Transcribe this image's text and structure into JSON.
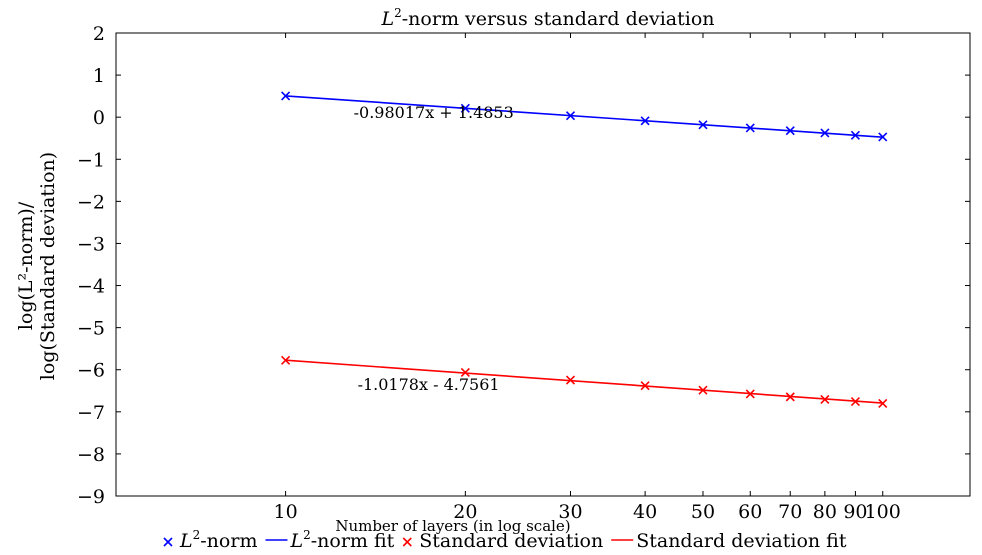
{
  "chart_data": {
    "type": "line",
    "title_math": "L",
    "title_sup": "2",
    "title_rest": "-norm versus standard deviation",
    "xlabel": "Number of layers (in log scale)",
    "ylabel_line1": "log(L²-norm)/",
    "ylabel_line2": "log(Standard deviation)",
    "xscale": "log",
    "x_ticks": [
      10,
      20,
      30,
      40,
      50,
      60,
      70,
      80,
      90,
      100
    ],
    "x_tick_labels": [
      "10",
      "20",
      "30",
      "40",
      "50",
      "60",
      "70",
      "80",
      "90",
      "100"
    ],
    "xlim": [
      5.2,
      140
    ],
    "ylim": [
      -9,
      2
    ],
    "y_ticks": [
      2,
      1,
      0,
      -1,
      -2,
      -3,
      -4,
      -5,
      -6,
      -7,
      -8,
      -9
    ],
    "y_tick_labels": [
      "2",
      "1",
      "0",
      "−1",
      "−2",
      "−3",
      "−4",
      "−5",
      "−6",
      "−7",
      "−8",
      "−9"
    ],
    "grid": false,
    "legend_position": "bottom",
    "series": [
      {
        "name": "L²-norm",
        "name_math": "L",
        "name_sup": "2",
        "name_rest": "-norm",
        "kind": "markers",
        "marker": "x",
        "color": "#0000ff",
        "x": [
          10,
          20,
          30,
          40,
          50,
          60,
          70,
          80,
          90,
          100
        ],
        "y": [
          0.505,
          0.21,
          0.035,
          -0.085,
          -0.18,
          -0.255,
          -0.32,
          -0.375,
          -0.43,
          -0.47
        ]
      },
      {
        "name": "L²-norm fit",
        "name_math": "L",
        "name_sup": "2",
        "name_rest": "-norm fit",
        "kind": "line",
        "color": "#0000ff",
        "slope": -0.98017,
        "intercept": 1.4853,
        "x": [
          10,
          100
        ],
        "annotation": "-0.98017x + 1.4853",
        "annotation_at": [
          13,
          -0.02
        ]
      },
      {
        "name": "Standard deviation",
        "kind": "markers",
        "marker": "x",
        "color": "#ff0000",
        "x": [
          10,
          20,
          30,
          40,
          50,
          60,
          70,
          80,
          90,
          100
        ],
        "y": [
          -5.775,
          -6.065,
          -6.245,
          -6.38,
          -6.485,
          -6.575,
          -6.645,
          -6.705,
          -6.755,
          -6.8
        ]
      },
      {
        "name": "Standard deviation fit",
        "kind": "line",
        "color": "#ff0000",
        "slope": -1.0178,
        "intercept": -4.7561,
        "x": [
          10,
          100
        ],
        "annotation": "-1.0178x - 4.7561",
        "annotation_at": [
          13.2,
          -6.48
        ]
      }
    ]
  }
}
